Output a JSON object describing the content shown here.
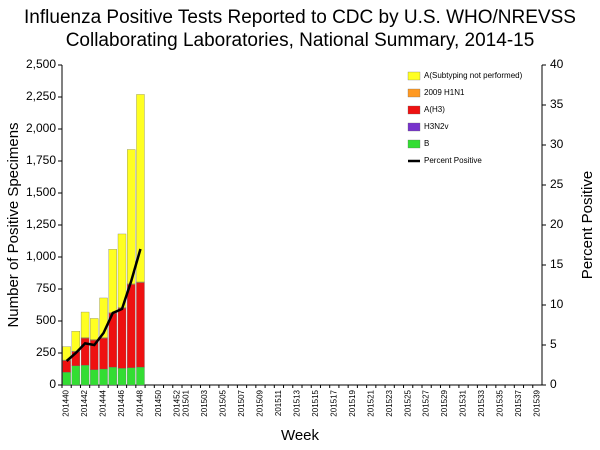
{
  "chart_data": {
    "type": "bar",
    "title": [
      "Influenza Positive Tests Reported to CDC by U.S. WHO/NREVSS",
      "Collaborating Laboratories, National Summary, 2014-15"
    ],
    "x_label": "Week",
    "y_label": "Number of Positive Specimens",
    "y2_label": "Percent Positive",
    "stacked": true,
    "categories": [
      "201440",
      null,
      "201442",
      null,
      "201444",
      null,
      "201446",
      null,
      "201448",
      null,
      "201450",
      null,
      "201452",
      "201501",
      null,
      "201503",
      null,
      "201505",
      null,
      "201507",
      null,
      "201509",
      null,
      "201511",
      null,
      "201513",
      null,
      "201515",
      null,
      "201517",
      null,
      "201519",
      null,
      "201521",
      null,
      "201523",
      null,
      "201525",
      null,
      "201527",
      null,
      "201529",
      null,
      "201531",
      null,
      "201533",
      null,
      "201535",
      null,
      "201537",
      null,
      "201539"
    ],
    "series": [
      {
        "name": "B",
        "color": "#33dd33",
        "values": [
          100,
          150,
          155,
          120,
          125,
          140,
          130,
          135,
          140,
          null,
          null,
          null,
          null,
          null,
          null,
          null,
          null,
          null,
          null,
          null,
          null,
          null,
          null,
          null,
          null,
          null,
          null,
          null,
          null,
          null,
          null,
          null,
          null,
          null,
          null,
          null,
          null,
          null,
          null,
          null,
          null,
          null,
          null,
          null,
          null,
          null,
          null,
          null,
          null,
          null,
          null,
          null
        ]
      },
      {
        "name": "H3N2v",
        "color": "#7733cc",
        "values": [
          0,
          0,
          0,
          0,
          0,
          0,
          0,
          0,
          0,
          null,
          null,
          null,
          null,
          null,
          null,
          null,
          null,
          null,
          null,
          null,
          null,
          null,
          null,
          null,
          null,
          null,
          null,
          null,
          null,
          null,
          null,
          null,
          null,
          null,
          null,
          null,
          null,
          null,
          null,
          null,
          null,
          null,
          null,
          null,
          null,
          null,
          null,
          null,
          null,
          null,
          null,
          null
        ]
      },
      {
        "name": "A(H3)",
        "color": "#ee1111",
        "values": [
          90,
          110,
          210,
          230,
          240,
          420,
          470,
          650,
          660,
          null,
          null,
          null,
          null,
          null,
          null,
          null,
          null,
          null,
          null,
          null,
          null,
          null,
          null,
          null,
          null,
          null,
          null,
          null,
          null,
          null,
          null,
          null,
          null,
          null,
          null,
          null,
          null,
          null,
          null,
          null,
          null,
          null,
          null,
          null,
          null,
          null,
          null,
          null,
          null,
          null,
          null,
          null
        ]
      },
      {
        "name": "2009 H1N1",
        "color": "#ff9922",
        "values": [
          5,
          5,
          5,
          5,
          5,
          5,
          5,
          5,
          5,
          null,
          null,
          null,
          null,
          null,
          null,
          null,
          null,
          null,
          null,
          null,
          null,
          null,
          null,
          null,
          null,
          null,
          null,
          null,
          null,
          null,
          null,
          null,
          null,
          null,
          null,
          null,
          null,
          null,
          null,
          null,
          null,
          null,
          null,
          null,
          null,
          null,
          null,
          null,
          null,
          null,
          null,
          null
        ]
      },
      {
        "name": "A(Subtyping not performed)",
        "color": "#ffff22",
        "values": [
          105,
          155,
          200,
          165,
          310,
          495,
          575,
          1050,
          1465,
          null,
          null,
          null,
          null,
          null,
          null,
          null,
          null,
          null,
          null,
          null,
          null,
          null,
          null,
          null,
          null,
          null,
          null,
          null,
          null,
          null,
          null,
          null,
          null,
          null,
          null,
          null,
          null,
          null,
          null,
          null,
          null,
          null,
          null,
          null,
          null,
          null,
          null,
          null,
          null,
          null,
          null,
          null
        ]
      },
      {
        "name": "Percent Positive",
        "color": "#000000",
        "type": "line",
        "axis": "y2",
        "values": [
          3,
          4,
          5.2,
          5,
          6.5,
          9,
          9.5,
          13,
          17,
          null,
          null,
          null,
          null,
          null,
          null,
          null,
          null,
          null,
          null,
          null,
          null,
          null,
          null,
          null,
          null,
          null,
          null,
          null,
          null,
          null,
          null,
          null,
          null,
          null,
          null,
          null,
          null,
          null,
          null,
          null,
          null,
          null,
          null,
          null,
          null,
          null,
          null,
          null,
          null,
          null,
          null,
          null
        ]
      }
    ],
    "ylim": [
      0,
      2500
    ],
    "yticks": [
      0,
      250,
      500,
      750,
      {
        "value": 1000,
        "label": "1,000"
      },
      {
        "value": 1250,
        "label": "1,250"
      },
      {
        "value": 1500,
        "label": "1,500"
      },
      {
        "value": 1750,
        "label": "1,750"
      },
      {
        "value": 2000,
        "label": "2,000"
      },
      {
        "value": 2250,
        "label": "2,250"
      },
      {
        "value": 2500,
        "label": "2,500"
      }
    ],
    "y2lim": [
      0,
      40
    ],
    "y2ticks": [
      0,
      5,
      10,
      15,
      20,
      25,
      30,
      35,
      40
    ],
    "legend": "upper right"
  }
}
